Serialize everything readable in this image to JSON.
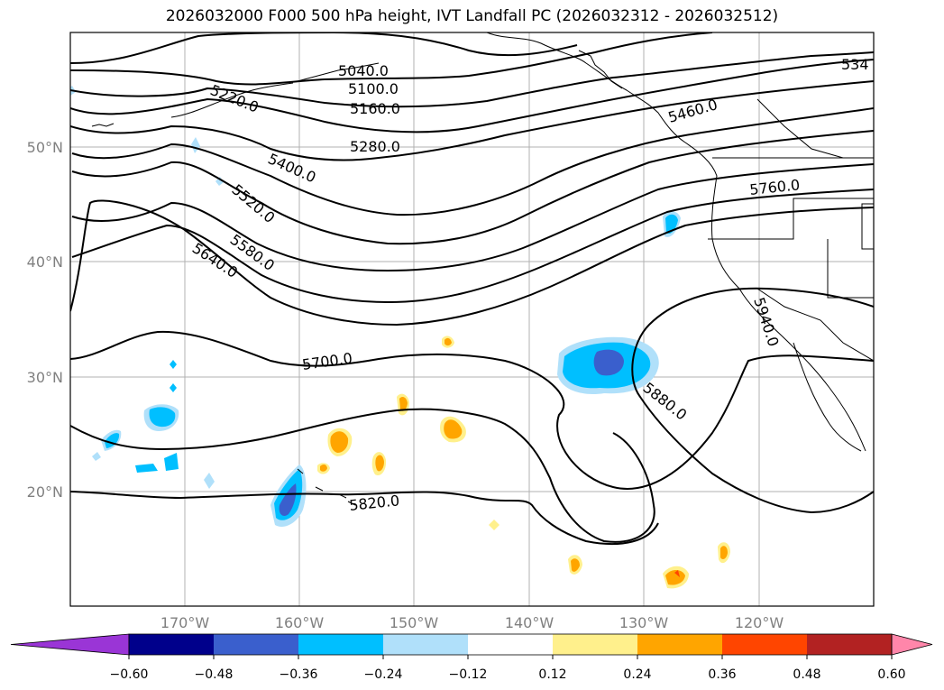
{
  "title": "2026032000 F000 500 hPa height, IVT Landfall PC (2026032312 - 2026032512)",
  "map": {
    "latitude_labels": [
      "50°N",
      "40°N",
      "30°N",
      "20°N"
    ],
    "longitude_labels": [
      "170°W",
      "160°W",
      "150°W",
      "140°W",
      "130°W",
      "120°W"
    ],
    "gridlines": true
  },
  "contours": {
    "variable": "500 hPa height",
    "labels": [
      "5040.0",
      "5100.0",
      "5160.0",
      "5220.0",
      "5280.0",
      "5400.0",
      "5460.0",
      "5520.0",
      "5580.0",
      "5640.0",
      "5700.0",
      "5760.0",
      "5820.0",
      "5880.0",
      "5940.0",
      "534"
    ]
  },
  "colorbar": {
    "ticks": [
      "−0.60",
      "−0.48",
      "−0.36",
      "−0.24",
      "−0.12",
      "0.12",
      "0.24",
      "0.36",
      "0.48",
      "0.60"
    ],
    "colors": [
      "#9a35d6",
      "#00008b",
      "#3a5fcd",
      "#00bfff",
      "#b0e0fa",
      "#ffffff",
      "#fff08c",
      "#ffa500",
      "#ff4500",
      "#b22222",
      "#ff86aa"
    ],
    "extend": "both"
  }
}
